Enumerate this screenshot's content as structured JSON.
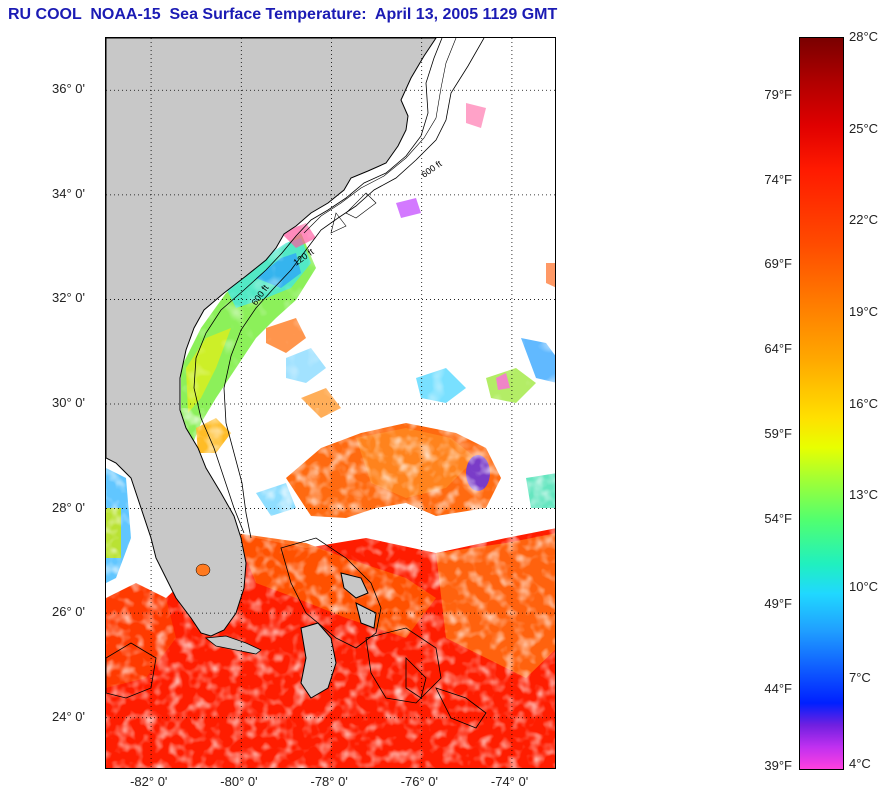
{
  "title": "RU COOL  NOAA-15  Sea Surface Temperature:  April 13, 2005 1129 GMT",
  "map": {
    "lat_ticks": [
      "36° 0'",
      "34° 0'",
      "32° 0'",
      "30° 0'",
      "28° 0'",
      "26° 0'",
      "24° 0'"
    ],
    "lon_ticks": [
      "-82° 0'",
      "-80° 0'",
      "-78° 0'",
      "-76° 0'",
      "-74° 0'"
    ],
    "lat_range": [
      23.0,
      37.0
    ],
    "lon_range": [
      -83.0,
      -73.0
    ],
    "isobath_labels": [
      "120 ft",
      "600 ft"
    ],
    "colors": {
      "land": "#c8c8c8",
      "no_data": "#ffffff",
      "grid": "#000000"
    }
  },
  "colorbar": {
    "fahrenheit_labels": [
      "79°F",
      "74°F",
      "69°F",
      "64°F",
      "59°F",
      "54°F",
      "49°F",
      "44°F",
      "39°F"
    ],
    "celsius_labels": [
      "28°C",
      "25°C",
      "22°C",
      "19°C",
      "16°C",
      "13°C",
      "10°C",
      "7°C",
      "4°C"
    ],
    "range_c": [
      4,
      28
    ]
  }
}
